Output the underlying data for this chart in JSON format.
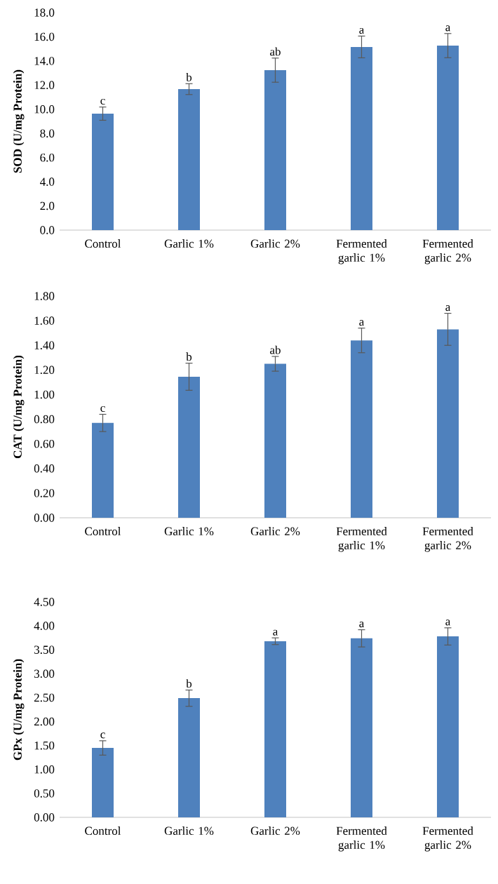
{
  "chart_data": [
    {
      "type": "bar",
      "categories": [
        "Control",
        "Garlic 1%",
        "Garlic 2%",
        "Fermented garlic 1%",
        "Fermented garlic 2%"
      ],
      "values": [
        9.64,
        11.67,
        13.24,
        15.16,
        15.27
      ],
      "errors": [
        0.55,
        0.45,
        1.0,
        0.9,
        1.0
      ],
      "color": "#4f81bd",
      "ylabel": "SOD (U/mg Protein)",
      "ylim": [
        0,
        18
      ],
      "yticks": [
        {
          "value": 0,
          "label": "0.0"
        },
        {
          "value": 2,
          "label": "2.0"
        },
        {
          "value": 4,
          "label": "4.0"
        },
        {
          "value": 6,
          "label": "6.0"
        },
        {
          "value": 8,
          "label": "8.0"
        },
        {
          "value": 10,
          "label": "10.0"
        },
        {
          "value": 12,
          "label": "12.0"
        },
        {
          "value": 14,
          "label": "14.0"
        },
        {
          "value": 16,
          "label": "16.0"
        },
        {
          "value": 18,
          "label": "18.0"
        }
      ],
      "annotations": [
        {
          "text": "c",
          "x": "Control",
          "y": 10.19
        },
        {
          "text": "b",
          "x": "Garlic 1%",
          "y": 12.12
        },
        {
          "text": "ab",
          "x": "Garlic 2%",
          "y": 14.24
        },
        {
          "text": "a",
          "x": "Fermented garlic 1%",
          "y": 16.06
        },
        {
          "text": "a",
          "x": "Fermented garlic 2%",
          "y": 16.27
        }
      ]
    },
    {
      "type": "bar",
      "categories": [
        "Control",
        "Garlic 1%",
        "Garlic 2%",
        "Fermented garlic 1%",
        "Fermented garlic 2%"
      ],
      "values": [
        0.77,
        1.145,
        1.25,
        1.44,
        1.53
      ],
      "errors": [
        0.07,
        0.11,
        0.06,
        0.1,
        0.13
      ],
      "color": "#4f81bd",
      "ylabel": "CAT (U/mg Protein)",
      "ylim": [
        0,
        1.8
      ],
      "yticks": [
        {
          "value": 0,
          "label": "0.00"
        },
        {
          "value": 0.2,
          "label": "0.20"
        },
        {
          "value": 0.4,
          "label": "0.40"
        },
        {
          "value": 0.6,
          "label": "0.60"
        },
        {
          "value": 0.8,
          "label": "0.80"
        },
        {
          "value": 1.0,
          "label": "1.00"
        },
        {
          "value": 1.2,
          "label": "1.20"
        },
        {
          "value": 1.4,
          "label": "1.40"
        },
        {
          "value": 1.6,
          "label": "1.60"
        },
        {
          "value": 1.8,
          "label": "1.80"
        }
      ],
      "annotations": [
        {
          "text": "c",
          "x": "Control",
          "y": 0.84
        },
        {
          "text": "b",
          "x": "Garlic 1%",
          "y": 1.255
        },
        {
          "text": "ab",
          "x": "Garlic 2%",
          "y": 1.31
        },
        {
          "text": "a",
          "x": "Fermented garlic 1%",
          "y": 1.54
        },
        {
          "text": "a",
          "x": "Fermented garlic 2%",
          "y": 1.66
        }
      ]
    },
    {
      "type": "bar",
      "categories": [
        "Control",
        "Garlic 1%",
        "Garlic 2%",
        "Fermented garlic 1%",
        "Fermented garlic 2%"
      ],
      "values": [
        1.45,
        2.49,
        3.68,
        3.74,
        3.78
      ],
      "errors": [
        0.15,
        0.17,
        0.07,
        0.18,
        0.18
      ],
      "color": "#4f81bd",
      "ylabel": "GPx (U/mg Protein)",
      "ylim": [
        0,
        4.5
      ],
      "yticks": [
        {
          "value": 0,
          "label": "0.00"
        },
        {
          "value": 0.5,
          "label": "0.50"
        },
        {
          "value": 1.0,
          "label": "1.00"
        },
        {
          "value": 1.5,
          "label": "1.50"
        },
        {
          "value": 2.0,
          "label": "2.00"
        },
        {
          "value": 2.5,
          "label": "2.50"
        },
        {
          "value": 3.0,
          "label": "3.00"
        },
        {
          "value": 3.5,
          "label": "3.50"
        },
        {
          "value": 4.0,
          "label": "4.00"
        },
        {
          "value": 4.5,
          "label": "4.50"
        }
      ],
      "annotations": [
        {
          "text": "c",
          "x": "Control",
          "y": 1.6
        },
        {
          "text": "b",
          "x": "Garlic 1%",
          "y": 2.66
        },
        {
          "text": "a",
          "x": "Garlic 2%",
          "y": 3.75
        },
        {
          "text": "a",
          "x": "Fermented garlic 1%",
          "y": 3.92
        },
        {
          "text": "a",
          "x": "Fermented garlic 2%",
          "y": 3.96
        }
      ]
    }
  ]
}
